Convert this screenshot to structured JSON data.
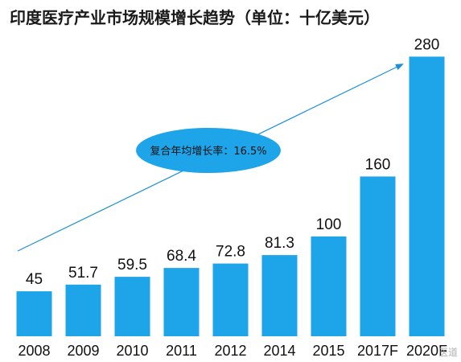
{
  "chart_data": {
    "type": "bar",
    "title": "印度医疗产业市场规模增长趋势（单位：十亿美元）",
    "categories": [
      "2008",
      "2009",
      "2010",
      "2011",
      "2012",
      "2014",
      "2015",
      "2017F",
      "2020F"
    ],
    "values": [
      45,
      51.7,
      59.5,
      68.4,
      72.8,
      81.3,
      100,
      160,
      280
    ],
    "value_labels": [
      "45",
      "51.7",
      "59.5",
      "68.4",
      "72.8",
      "81.3",
      "100",
      "160",
      "280"
    ],
    "ylim": [
      0,
      290
    ],
    "grid": false,
    "bar_color": "#1ea4e9",
    "annotation": {
      "text": "复合年均增长率：16.5%",
      "shape": "ellipse",
      "fill_color": "#1ea4e9",
      "arrow_color": "#1e8fd6"
    }
  },
  "watermark": "医道"
}
